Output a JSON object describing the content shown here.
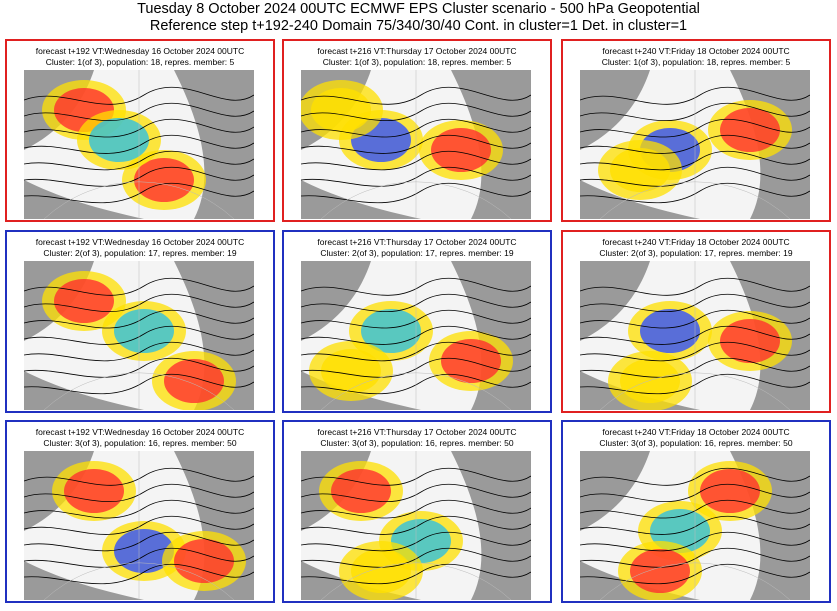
{
  "header": {
    "line1": "Tuesday 8 October 2024 00UTC ECMWF EPS Cluster scenario - 500 hPa Geopotential",
    "line2": "Reference step t+192-240 Domain 75/340/30/40 Cont. in cluster=1 Det. in cluster=1"
  },
  "colors": {
    "red_frame": "#e02020",
    "blue_frame": "#2030c0"
  },
  "panels": [
    {
      "line1": "forecast t+192 VT:Wednesday 16 October 2024 00UTC",
      "line2": "Cluster: 1(of 3), population: 18, repres. member: 5",
      "frame": "red"
    },
    {
      "line1": "forecast t+216 VT:Thursday 17 October 2024 00UTC",
      "line2": "Cluster: 1(of 3), population: 18, repres. member: 5",
      "frame": "red"
    },
    {
      "line1": "forecast t+240 VT:Friday 18 October 2024 00UTC",
      "line2": "Cluster: 1(of 3), population: 18, repres. member: 5",
      "frame": "red"
    },
    {
      "line1": "forecast t+192 VT:Wednesday 16 October 2024 00UTC",
      "line2": "Cluster: 2(of 3), population: 17, repres. member: 19",
      "frame": "blue"
    },
    {
      "line1": "forecast t+216 VT:Thursday 17 October 2024 00UTC",
      "line2": "Cluster: 2(of 3), population: 17, repres. member: 19",
      "frame": "blue"
    },
    {
      "line1": "forecast t+240 VT:Friday 18 October 2024 00UTC",
      "line2": "Cluster: 2(of 3), population: 17, repres. member: 19",
      "frame": "red"
    },
    {
      "line1": "forecast t+192 VT:Wednesday 16 October 2024 00UTC",
      "line2": "Cluster: 3(of 3), population: 16, repres. member: 50",
      "frame": "blue"
    },
    {
      "line1": "forecast t+216 VT:Thursday 17 October 2024 00UTC",
      "line2": "Cluster: 3(of 3), population: 16, repres. member: 50",
      "frame": "blue"
    },
    {
      "line1": "forecast t+240 VT:Friday 18 October 2024 00UTC",
      "line2": "Cluster: 3(of 3), population: 16, repres. member: 50",
      "frame": "blue"
    }
  ]
}
